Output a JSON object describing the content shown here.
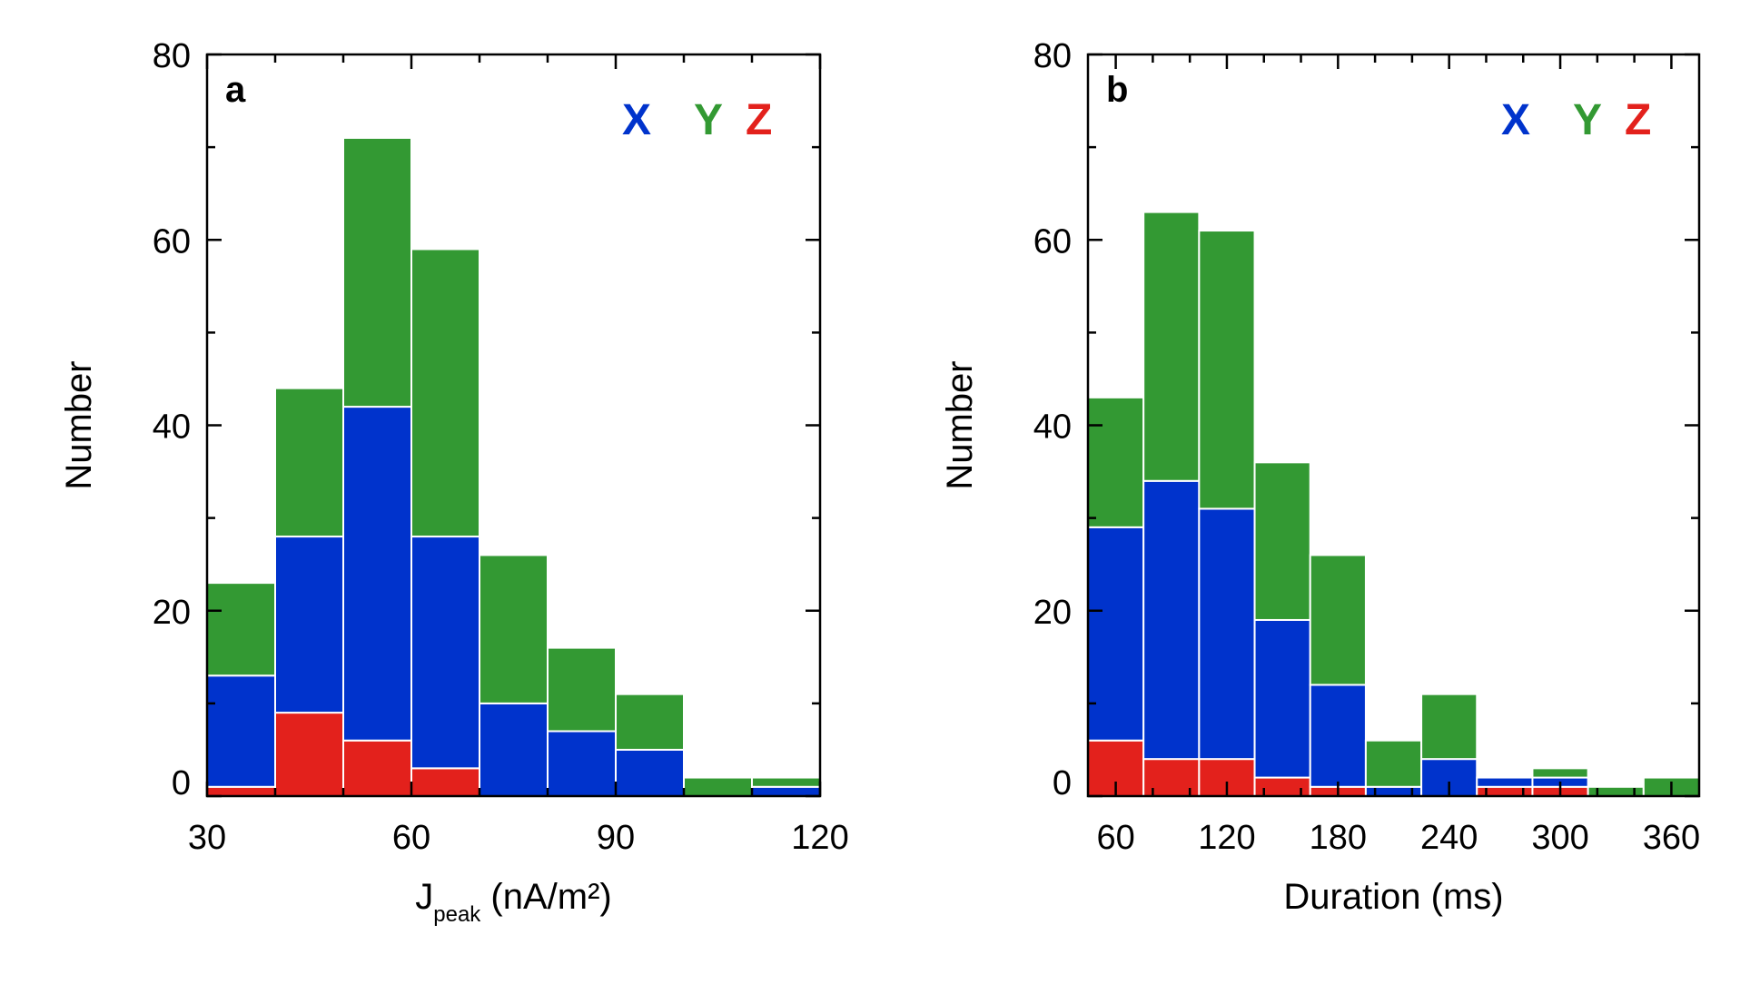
{
  "chart_data": [
    {
      "type": "bar",
      "stacked": true,
      "panel_label": "a",
      "xlabel_main": "J",
      "xlabel_sub": "peak",
      "xlabel_unit": " (nA/m²)",
      "ylabel": "Number",
      "xlim": [
        30,
        120
      ],
      "ylim": [
        0,
        80
      ],
      "xticks": [
        "30",
        "60",
        "90",
        "120"
      ],
      "yticks": [
        "0",
        "20",
        "40",
        "60",
        "80"
      ],
      "bin_edges": [
        30,
        40,
        50,
        60,
        70,
        80,
        90,
        100,
        110,
        120
      ],
      "series": [
        {
          "name": "Z",
          "color": "#e3211c",
          "values": [
            1,
            9,
            6,
            3,
            0,
            0,
            0,
            0,
            0
          ]
        },
        {
          "name": "X",
          "color": "#0033cc",
          "values": [
            12,
            19,
            36,
            25,
            10,
            7,
            5,
            0,
            1
          ]
        },
        {
          "name": "Y",
          "color": "#339933",
          "values": [
            10,
            16,
            29,
            31,
            16,
            9,
            6,
            2,
            1
          ]
        }
      ],
      "legend": [
        "X",
        "Y",
        "Z"
      ],
      "legend_position": "top-right",
      "grid": false
    },
    {
      "type": "bar",
      "stacked": true,
      "panel_label": "b",
      "xlabel_main": "Duration (ms)",
      "xlabel_sub": "",
      "xlabel_unit": "",
      "ylabel": "Number",
      "xlim": [
        45,
        375
      ],
      "ylim": [
        0,
        80
      ],
      "xticks": [
        "60",
        "120",
        "180",
        "240",
        "300",
        "360"
      ],
      "yticks": [
        "0",
        "20",
        "40",
        "60",
        "80"
      ],
      "bin_edges": [
        45,
        75,
        105,
        135,
        165,
        195,
        225,
        255,
        285,
        315,
        345,
        375
      ],
      "series": [
        {
          "name": "Z",
          "color": "#e3211c",
          "values": [
            6,
            4,
            4,
            2,
            1,
            0,
            0,
            1,
            1,
            0,
            0
          ]
        },
        {
          "name": "X",
          "color": "#0033cc",
          "values": [
            23,
            30,
            27,
            17,
            11,
            1,
            4,
            1,
            1,
            0,
            0
          ]
        },
        {
          "name": "Y",
          "color": "#339933",
          "values": [
            14,
            29,
            30,
            17,
            14,
            5,
            7,
            0,
            1,
            1,
            2
          ]
        }
      ],
      "legend": [
        "X",
        "Y",
        "Z"
      ],
      "legend_position": "top-right",
      "grid": false
    }
  ]
}
